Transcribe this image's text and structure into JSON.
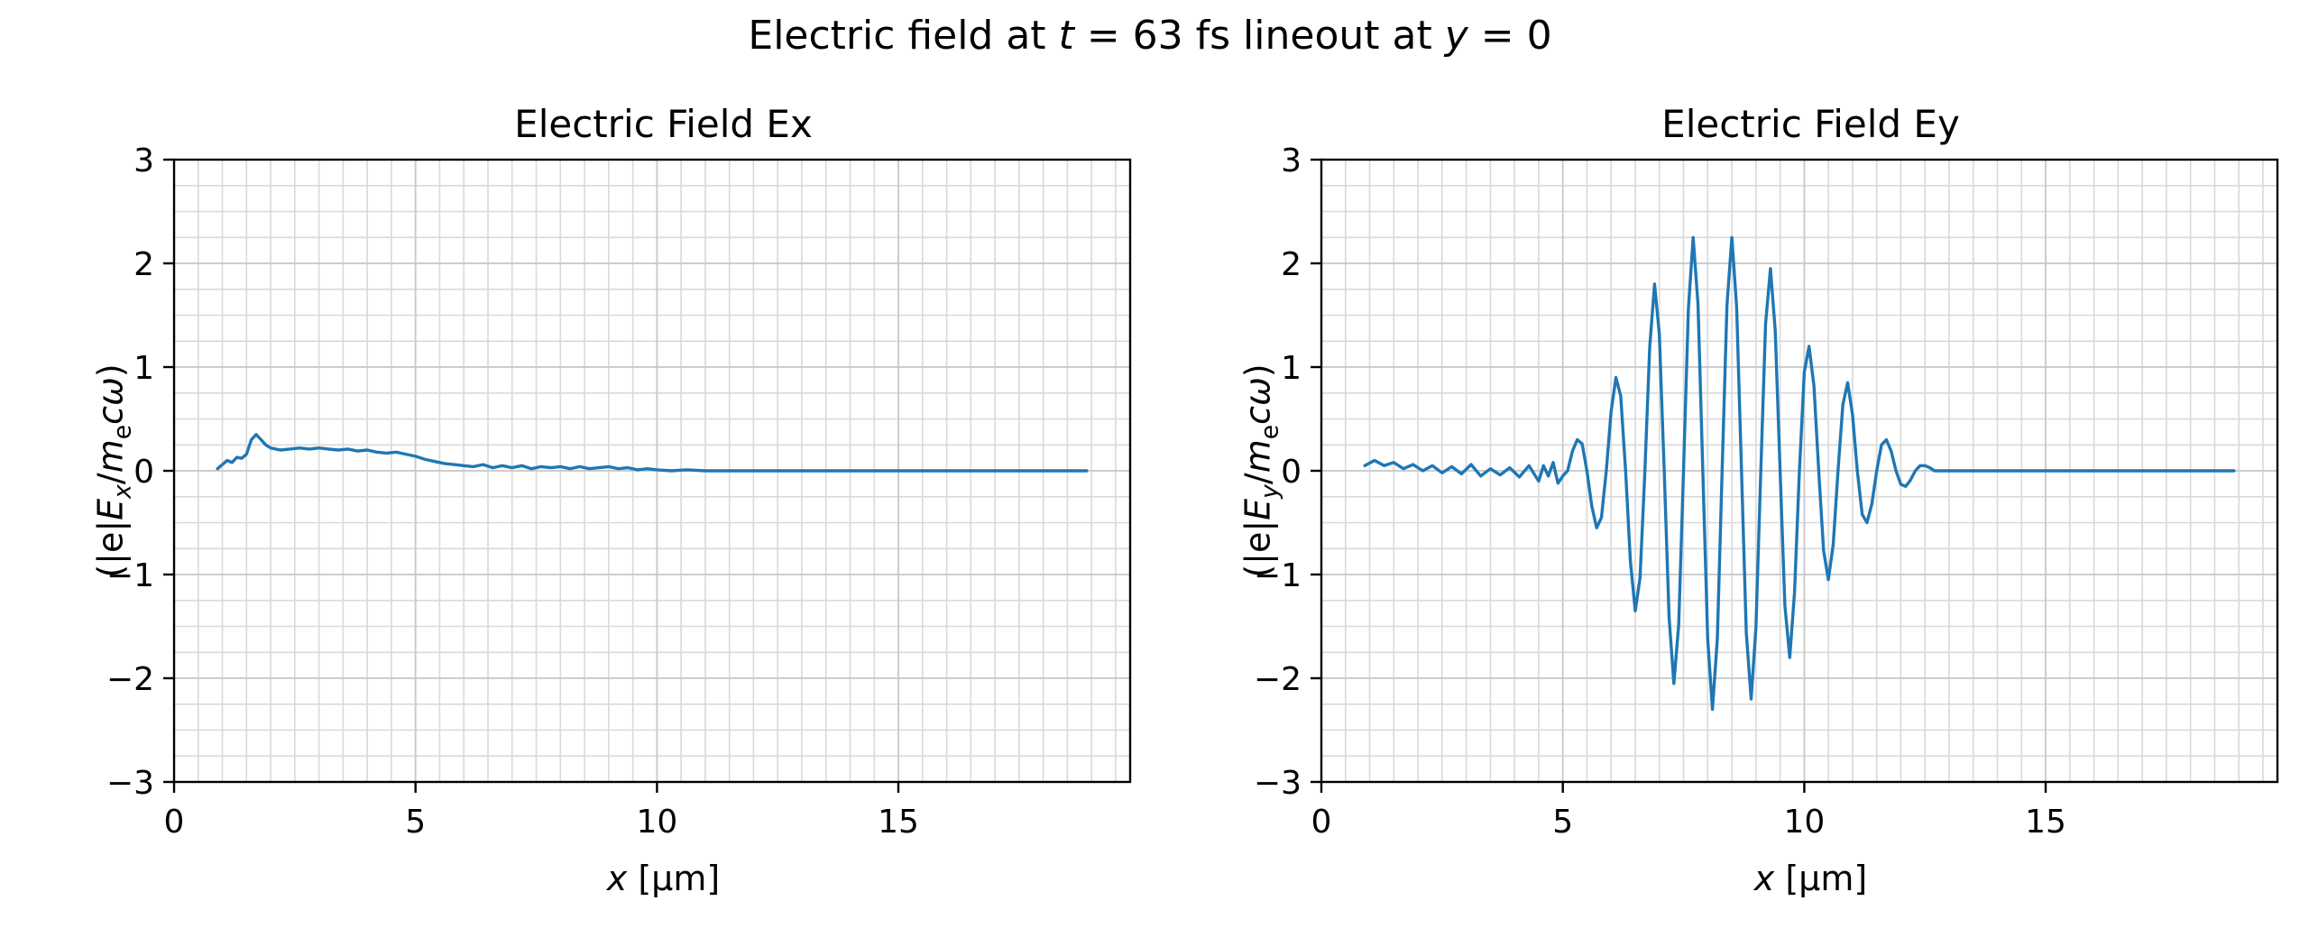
{
  "figure": {
    "suptitle_html": "Electric field at <i>t</i> = 63 fs lineout at <i>y</i> = 0",
    "background": "#ffffff",
    "line_color": "#1f77b4",
    "grid_color": "#d9d9d9",
    "major_grid_color": "#c9c9c9"
  },
  "chart_data": [
    {
      "type": "line",
      "title": "Electric Field Ex",
      "xlabel_html": "<i>x</i> [µm]",
      "ylabel_html": "(|e|<i>E</i><sub><i>x</i></sub>/<i>m</i><sub>e</sub><i>c&#969;</i>)",
      "xlim": [
        0,
        19.8
      ],
      "ylim": [
        -3,
        3
      ],
      "xticks": [
        0,
        5,
        10,
        15
      ],
      "yticks": [
        -3,
        -2,
        -1,
        0,
        1,
        2,
        3
      ],
      "x_minor_step": 0.5,
      "y_minor_step": 0.25,
      "grid": true,
      "legend": "none",
      "line_color": "#1f77b4",
      "x": [
        0.9,
        1.0,
        1.1,
        1.2,
        1.3,
        1.4,
        1.5,
        1.6,
        1.7,
        1.8,
        1.9,
        2.0,
        2.2,
        2.4,
        2.6,
        2.8,
        3.0,
        3.2,
        3.4,
        3.6,
        3.8,
        4.0,
        4.2,
        4.4,
        4.6,
        4.8,
        5.0,
        5.2,
        5.4,
        5.6,
        5.8,
        6.0,
        6.2,
        6.4,
        6.6,
        6.8,
        7.0,
        7.2,
        7.4,
        7.6,
        7.8,
        8.0,
        8.2,
        8.4,
        8.6,
        8.8,
        9.0,
        9.2,
        9.4,
        9.6,
        9.8,
        10.0,
        10.3,
        10.6,
        11.0,
        11.5,
        12.0,
        13.0,
        14.0,
        15.0,
        16.0,
        17.0,
        18.0,
        18.9
      ],
      "y": [
        0.02,
        0.06,
        0.1,
        0.08,
        0.13,
        0.12,
        0.16,
        0.3,
        0.35,
        0.3,
        0.25,
        0.22,
        0.2,
        0.21,
        0.22,
        0.21,
        0.22,
        0.21,
        0.2,
        0.21,
        0.19,
        0.2,
        0.18,
        0.17,
        0.18,
        0.16,
        0.14,
        0.11,
        0.09,
        0.07,
        0.06,
        0.05,
        0.04,
        0.06,
        0.03,
        0.05,
        0.03,
        0.05,
        0.02,
        0.04,
        0.03,
        0.04,
        0.02,
        0.04,
        0.02,
        0.03,
        0.04,
        0.02,
        0.03,
        0.01,
        0.02,
        0.01,
        0.0,
        0.01,
        0.0,
        0.0,
        0.0,
        0.0,
        0.0,
        0.0,
        0.0,
        0.0,
        0.0,
        0.0
      ]
    },
    {
      "type": "line",
      "title": "Electric Field Ey",
      "xlabel_html": "<i>x</i> [µm]",
      "ylabel_html": "(|e|<i>E</i><sub><i>y</i></sub>/<i>m</i><sub>e</sub><i>c&#969;</i>)",
      "xlim": [
        0,
        19.8
      ],
      "ylim": [
        -3,
        3
      ],
      "xticks": [
        0,
        5,
        10,
        15
      ],
      "yticks": [
        -3,
        -2,
        -1,
        0,
        1,
        2,
        3
      ],
      "x_minor_step": 0.5,
      "y_minor_step": 0.25,
      "grid": true,
      "legend": "none",
      "line_color": "#1f77b4",
      "x": [
        0.9,
        1.1,
        1.3,
        1.5,
        1.7,
        1.9,
        2.1,
        2.3,
        2.5,
        2.7,
        2.9,
        3.1,
        3.3,
        3.5,
        3.7,
        3.9,
        4.1,
        4.3,
        4.5,
        4.6,
        4.7,
        4.8,
        4.9,
        5.0,
        5.1,
        5.2,
        5.3,
        5.4,
        5.5,
        5.6,
        5.7,
        5.8,
        5.9,
        6.0,
        6.1,
        6.2,
        6.3,
        6.4,
        6.5,
        6.6,
        6.7,
        6.8,
        6.9,
        7.0,
        7.1,
        7.2,
        7.3,
        7.4,
        7.5,
        7.6,
        7.7,
        7.8,
        7.9,
        8.0,
        8.1,
        8.2,
        8.3,
        8.4,
        8.5,
        8.6,
        8.7,
        8.8,
        8.9,
        9.0,
        9.1,
        9.2,
        9.3,
        9.4,
        9.5,
        9.6,
        9.7,
        9.8,
        9.9,
        10.0,
        10.1,
        10.2,
        10.3,
        10.4,
        10.5,
        10.6,
        10.7,
        10.8,
        10.9,
        11.0,
        11.1,
        11.2,
        11.3,
        11.4,
        11.5,
        11.6,
        11.7,
        11.8,
        11.9,
        12.0,
        12.1,
        12.2,
        12.3,
        12.4,
        12.5,
        12.6,
        12.7,
        13.0,
        13.5,
        14.0,
        15.0,
        16.0,
        17.0,
        18.0,
        18.9
      ],
      "y": [
        0.05,
        0.1,
        0.05,
        0.08,
        0.02,
        0.06,
        0.0,
        0.05,
        -0.02,
        0.04,
        -0.03,
        0.06,
        -0.05,
        0.02,
        -0.04,
        0.03,
        -0.06,
        0.05,
        -0.1,
        0.05,
        -0.05,
        0.08,
        -0.12,
        -0.05,
        0.0,
        0.19,
        0.3,
        0.26,
        0.0,
        -0.34,
        -0.55,
        -0.45,
        0.0,
        0.57,
        0.9,
        0.72,
        0.0,
        -0.87,
        -1.35,
        -1.03,
        0.0,
        1.19,
        1.8,
        1.32,
        0.0,
        -1.41,
        -2.05,
        -1.48,
        0.0,
        1.56,
        2.25,
        1.6,
        0.0,
        -1.62,
        -2.3,
        -1.62,
        0.0,
        1.6,
        2.25,
        1.58,
        0.0,
        -1.56,
        -2.2,
        -1.51,
        0.0,
        1.42,
        1.95,
        1.35,
        0.0,
        -1.3,
        -1.8,
        -1.17,
        0.0,
        0.95,
        1.2,
        0.82,
        0.0,
        -0.77,
        -1.05,
        -0.71,
        0.0,
        0.64,
        0.85,
        0.54,
        0.0,
        -0.42,
        -0.5,
        -0.32,
        0.0,
        0.25,
        0.3,
        0.19,
        0.0,
        -0.13,
        -0.15,
        -0.09,
        0.0,
        0.05,
        0.05,
        0.03,
        0.0,
        0.0,
        0.0,
        0.0,
        0.0,
        0.0,
        0.0,
        0.0,
        0.0
      ]
    }
  ]
}
